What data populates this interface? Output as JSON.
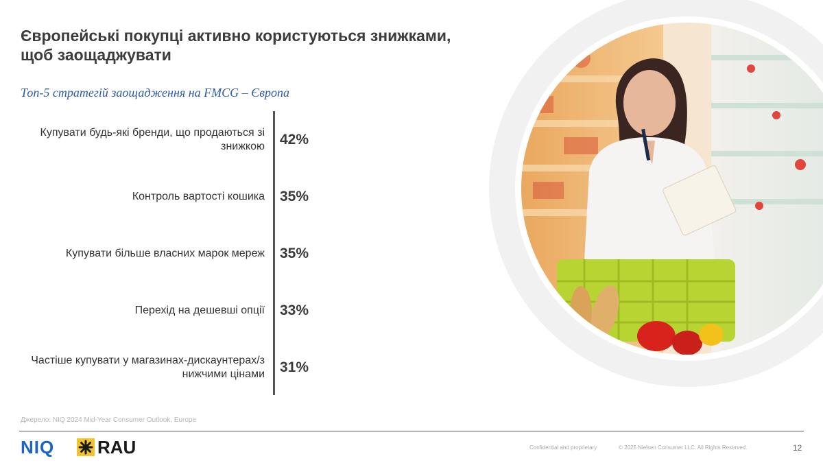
{
  "slide": {
    "title": "Європейські покупці активно користуються знижками, щоб заощаджувати",
    "subtitle": "Топ-5 стратегій заощадження на FMCG – Європа",
    "source": "Джерело: NIQ 2024 Mid-Year Consumer Outlook, Europe",
    "page_number": "12"
  },
  "chart_data": {
    "type": "bar",
    "title": "Топ-5 стратегій заощадження на FMCG – Європа",
    "categories": [
      "Купувати будь-які бренди, що продаються зі знижкою",
      "Контроль вартості кошика",
      "Купувати більше власних марок мереж",
      "Перехід на дешевші опції",
      "Частіше купувати у магазинах-дискаунтерах/з нижчими цінами"
    ],
    "values": [
      42,
      35,
      35,
      33,
      31
    ],
    "value_labels": [
      "42%",
      "35%",
      "35%",
      "33%",
      "31%"
    ],
    "unit": "%"
  },
  "footer": {
    "logo_niq": "NIQ",
    "logo_rau": "RAU",
    "confidential": "Confidential and proprietary",
    "copyright": "© 2025 Nielsen Consumer LLC. All Rights Reserved."
  },
  "photo": {
    "icon": "shopper-with-cart-photo",
    "ring_color": "#f0f0f0",
    "accent": "#b8d432"
  },
  "colors": {
    "subtitle": "#2a5aa8",
    "niq_blue": "#1e63c9",
    "rau_yellow": "#f2c230",
    "axis": "#555555"
  }
}
